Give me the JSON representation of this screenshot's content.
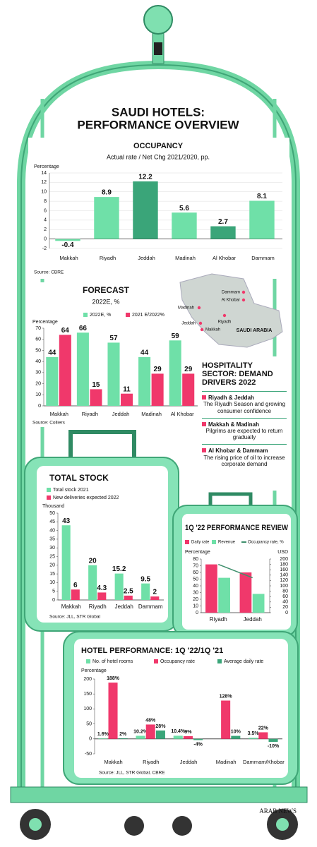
{
  "header": {
    "title_lines": [
      "SAUDI HOTELS:",
      "PERFORMANCE OVERVIEW"
    ]
  },
  "map": {
    "labels": [
      "Dammam",
      "Al Khobar",
      "Riyadh",
      "Madinah",
      "Jeddah",
      "Makkah"
    ],
    "country": "SAUDI ARABIA"
  },
  "drivers": {
    "title": "HOSPITALITY SECTOR: DEMAND DRIVERS 2022",
    "items": [
      {
        "heading": "Riyadh & Jeddah",
        "text": "The Riyadh Season and growing consumer confidence"
      },
      {
        "heading": "Makkah & Madinah",
        "text": "Pilgrims are expected to return gradually"
      },
      {
        "heading": "Al Khobar & Dammam",
        "text": "The rising price of oil to increase corporate demand"
      }
    ]
  },
  "footer": {
    "brand": "ARAB NEWS"
  },
  "chart_data": [
    {
      "type": "bar",
      "title": "OCCUPANCY",
      "subtitle": "Actual rate / Net Chg 2021/2020, pp.",
      "y_label": "Percentage",
      "source": "Source: CBRE",
      "categories": [
        "Makkah",
        "Riyadh",
        "Jeddah",
        "Madinah",
        "Al Khobar",
        "Dammam"
      ],
      "values": [
        -0.4,
        8.9,
        12.2,
        5.6,
        2.7,
        8.1
      ],
      "colors": [
        "#6fe0a8",
        "#6fe0a8",
        "#3aa579",
        "#6fe0a8",
        "#3aa579",
        "#6fe0a8"
      ],
      "ylim": [
        -2,
        14
      ],
      "yticks": [
        -2,
        0,
        2,
        4,
        6,
        8,
        10,
        12,
        14
      ],
      "grid": true
    },
    {
      "type": "bar",
      "title": "FORECAST",
      "subtitle": "2022E, %",
      "y_label": "Percentage",
      "source": "Source: Colliers",
      "categories": [
        "Makkah",
        "Riyadh",
        "Jeddah",
        "Madinah",
        "Al Khobar"
      ],
      "series": [
        {
          "name": "2022E, %",
          "color": "#6fe0a8",
          "values": [
            44,
            66,
            57,
            44,
            59
          ]
        },
        {
          "name": "2021 E/2022%",
          "color": "#f0386b",
          "values": [
            64,
            15,
            11,
            29,
            29
          ]
        }
      ],
      "ylim": [
        0,
        70
      ],
      "yticks": [
        0,
        10,
        20,
        30,
        40,
        50,
        60,
        70
      ],
      "grid": false
    },
    {
      "type": "bar",
      "title": "TOTAL STOCK",
      "y_label": "Thousand",
      "source": "Source: JLL, STR Global",
      "categories": [
        "Makkah",
        "Riyadh",
        "Jeddah",
        "Dammam"
      ],
      "series": [
        {
          "name": "Total stock 2021",
          "color": "#6fe0a8",
          "values": [
            43,
            20,
            15.2,
            9.5
          ]
        },
        {
          "name": "New deliveries expected 2022",
          "color": "#f0386b",
          "values": [
            6,
            4.3,
            2.5,
            2
          ]
        }
      ],
      "ylim": [
        0,
        50
      ],
      "yticks": [
        0,
        5,
        10,
        15,
        20,
        25,
        30,
        35,
        40,
        45,
        50
      ],
      "grid": false
    },
    {
      "type": "bar",
      "title": "1Q '22 PERFORMANCE REVIEW",
      "y_label": "Percentage",
      "y2_label": "USD",
      "categories": [
        "Riyadh",
        "Jeddah"
      ],
      "series": [
        {
          "name": "Daily rate",
          "color": "#f0386b",
          "values": [
            180,
            150
          ],
          "axis": "y2"
        },
        {
          "name": "Revenue",
          "color": "#6fe0a8",
          "values": [
            130,
            70
          ],
          "axis": "y2"
        },
        {
          "name": "Occupancy rate, %",
          "color": "#3e8f6c",
          "values": [
            72,
            52
          ],
          "type": "line"
        }
      ],
      "ylim": [
        0,
        80
      ],
      "yticks": [
        0,
        10,
        20,
        30,
        40,
        50,
        60,
        70,
        80
      ],
      "y2lim": [
        0,
        200
      ],
      "y2ticks": [
        0,
        20,
        40,
        60,
        80,
        100,
        120,
        140,
        160,
        180,
        200
      ],
      "grid": false
    },
    {
      "type": "bar",
      "title": "HOTEL PERFORMANCE: 1Q '22/1Q '21",
      "y_label": "Percentage",
      "source": "Source: JLL, STR Global, CBRE",
      "categories": [
        "Makkah",
        "Riyadh",
        "Jeddah",
        "Madinah",
        "Dammam/Khobar"
      ],
      "series": [
        {
          "name": "No. of hotel rooms",
          "color": "#6fe0a8",
          "values": [
            1.6,
            10.2,
            10.4,
            null,
            3.5
          ],
          "value_labels": [
            "1.6%",
            "10.2%",
            "10.4%",
            null,
            "3.5%"
          ]
        },
        {
          "name": "Occupancy rate",
          "color": "#f0386b",
          "values": [
            188,
            48,
            9,
            128,
            22
          ],
          "value_labels": [
            "188%",
            "48%",
            "9%",
            "128%",
            "22%"
          ]
        },
        {
          "name": "Average daily rate",
          "color": "#3aa579",
          "values": [
            2,
            28,
            -4,
            10,
            -10
          ],
          "value_labels": [
            "2%",
            "28%",
            "-4%",
            "10%",
            "-10%"
          ]
        }
      ],
      "ylim": [
        -50,
        200
      ],
      "yticks": [
        -50,
        0,
        50,
        100,
        150,
        200
      ],
      "grid": false
    }
  ]
}
